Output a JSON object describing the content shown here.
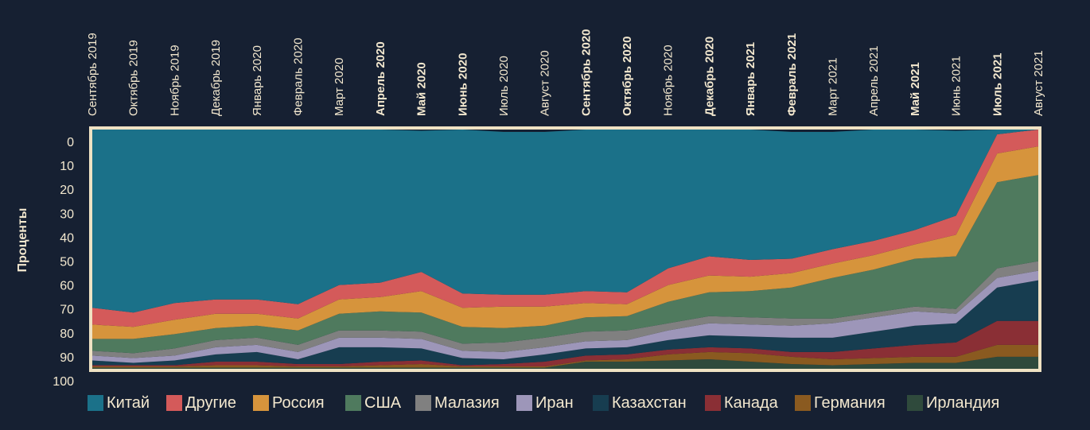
{
  "chart_data": {
    "type": "area",
    "stacked": true,
    "normalized_percent": true,
    "ylabel": "Проценты",
    "ylim": [
      0,
      100
    ],
    "y_inverted": true,
    "yticks": [
      0,
      10,
      20,
      30,
      40,
      50,
      60,
      70,
      80,
      90,
      100
    ],
    "legend_position": "bottom",
    "categories": [
      "Сентябрь 2019",
      "Октябрь 2019",
      "Ноябрь 2019",
      "Декабрь 2019",
      "Январь 2020",
      "Февраль 2020",
      "Март 2020",
      "Апрель 2020",
      "Май 2020",
      "Июнь 2020",
      "Июль 2020",
      "Август 2020",
      "Сентябрь 2020",
      "Октябрь 2020",
      "Ноябрь 2020",
      "Декабрь 2020",
      "Январь 2021",
      "Февраль 2021",
      "Март 2021",
      "Апрель 2021",
      "Май 2021",
      "Июнь 2021",
      "Июль 2021",
      "Август 2021"
    ],
    "bold_categories": [
      "Апрель 2020",
      "Май 2020",
      "Июнь 2020",
      "Сентябрь 2020",
      "Октябрь 2020",
      "Декабрь 2020",
      "Январь 2021",
      "Февраль 2021",
      "Май 2021",
      "Июль 2021"
    ],
    "series": [
      {
        "name": "Ирландия",
        "color": "#2f4a3c",
        "values": [
          0.5,
          0.5,
          0.5,
          0.5,
          0.5,
          0.5,
          0.5,
          0.5,
          0.5,
          0.5,
          0.5,
          0.5,
          3,
          3,
          3.5,
          4,
          3,
          2,
          1.5,
          2,
          2.5,
          2.5,
          5,
          5
        ]
      },
      {
        "name": "Германия",
        "color": "#8a5a20",
        "values": [
          0.5,
          0.5,
          0.5,
          1,
          1,
          0.5,
          0.5,
          1,
          1.5,
          0.5,
          0.5,
          0.5,
          0.5,
          1,
          2.5,
          3,
          3.5,
          3,
          2.5,
          2.5,
          2.5,
          2.5,
          5,
          5
        ]
      },
      {
        "name": "Канада",
        "color": "#8a2f35",
        "values": [
          0.5,
          0.5,
          0.5,
          1.5,
          1.5,
          1,
          1,
          1.5,
          1.5,
          0.5,
          1,
          2,
          2,
          2,
          2,
          2,
          2,
          2,
          3,
          4,
          5,
          6,
          10,
          10
        ]
      },
      {
        "name": "Казахстан",
        "color": "#173d50",
        "values": [
          2,
          1,
          2,
          3,
          4,
          2,
          7,
          6,
          5,
          3,
          2,
          3,
          3,
          3,
          4,
          5,
          5,
          6,
          6,
          7,
          8,
          8,
          14,
          17
        ]
      },
      {
        "name": "Иран",
        "color": "#9d96b9",
        "values": [
          2,
          2,
          2,
          3,
          3,
          3,
          4,
          4,
          4,
          3,
          3,
          3,
          3,
          3,
          4,
          5,
          5,
          5,
          6,
          6,
          6,
          4,
          4,
          4
        ]
      },
      {
        "name": "Малазия",
        "color": "#808080",
        "values": [
          2,
          2,
          3,
          3,
          3,
          3,
          3,
          3,
          3,
          3,
          4,
          4,
          4,
          4,
          3,
          3,
          3,
          3,
          2,
          2,
          2,
          2,
          4,
          4
        ]
      },
      {
        "name": "США",
        "color": "#4f7a5e",
        "values": [
          5,
          6,
          6,
          5,
          5,
          6,
          7,
          8,
          8,
          7,
          6,
          5,
          6,
          6,
          9,
          10,
          11,
          13,
          17,
          18,
          20,
          22,
          36,
          36
        ]
      },
      {
        "name": "Россия",
        "color": "#d6943c",
        "values": [
          6,
          5,
          6,
          6,
          5,
          5,
          6,
          6,
          9,
          8,
          9,
          8,
          6,
          5,
          7,
          7,
          6,
          6,
          6,
          6,
          6,
          9,
          12,
          12
        ]
      },
      {
        "name": "Другие",
        "color": "#d45a5a",
        "values": [
          7,
          6,
          7,
          6,
          6,
          6,
          6,
          6,
          8,
          6,
          5,
          5,
          5,
          5,
          7,
          8,
          7,
          6,
          6,
          6,
          6,
          8,
          8,
          9
        ]
      },
      {
        "name": "Китай",
        "color": "#1b7189",
        "values": [
          74.5,
          76.5,
          72.5,
          71,
          71,
          73,
          65,
          64,
          59,
          68.5,
          68,
          68,
          67.5,
          68,
          58,
          53,
          55,
          53,
          49,
          46.5,
          42,
          35.5,
          2,
          2
        ]
      }
    ]
  },
  "legend_order": [
    "Китай",
    "Другие",
    "Россия",
    "США",
    "Малазия",
    "Иран",
    "Казахстан",
    "Канада",
    "Германия",
    "Ирландия"
  ]
}
